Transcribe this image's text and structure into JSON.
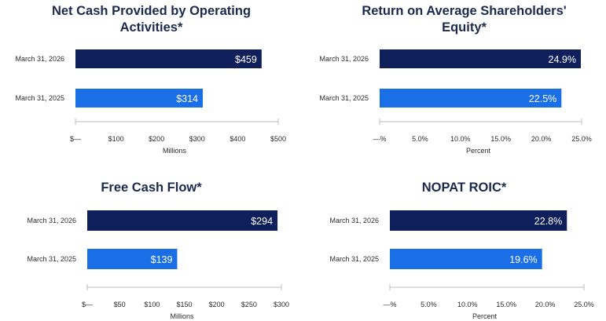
{
  "chart_data": [
    {
      "type": "bar",
      "orientation": "horizontal",
      "title": "Net Cash Provided by Operating Activities*",
      "xlabel": "Millions",
      "categories": [
        "March 31, 2026",
        "March 31, 2025"
      ],
      "values": [
        459,
        314
      ],
      "data_labels": [
        "$459",
        "$314"
      ],
      "bar_colors": [
        "#0f1f5c",
        "#1a6ee6"
      ],
      "xlim": [
        0,
        500
      ],
      "ticks": [
        0,
        100,
        200,
        300,
        400,
        500
      ],
      "tick_labels": [
        "$—",
        "$100",
        "$200",
        "$300",
        "$400",
        "$500"
      ],
      "grid": false
    },
    {
      "type": "bar",
      "orientation": "horizontal",
      "title": "Return on Average Shareholders' Equity*",
      "xlabel": "Percent",
      "categories": [
        "March 31, 2026",
        "March 31, 2025"
      ],
      "values": [
        24.9,
        22.5
      ],
      "data_labels": [
        "24.9%",
        "22.5%"
      ],
      "bar_colors": [
        "#0f1f5c",
        "#1a6ee6"
      ],
      "xlim": [
        0,
        25
      ],
      "ticks": [
        0,
        5,
        10,
        15,
        20,
        25
      ],
      "tick_labels": [
        "—%",
        "5.0%",
        "10.0%",
        "15.0%",
        "20.0%",
        "25.0%"
      ],
      "grid": false
    },
    {
      "type": "bar",
      "orientation": "horizontal",
      "title": "Free Cash Flow*",
      "xlabel": "Millions",
      "categories": [
        "March 31, 2026",
        "March 31, 2025"
      ],
      "values": [
        294,
        139
      ],
      "data_labels": [
        "$294",
        "$139"
      ],
      "bar_colors": [
        "#0f1f5c",
        "#1a6ee6"
      ],
      "xlim": [
        0,
        300
      ],
      "ticks": [
        0,
        50,
        100,
        150,
        200,
        250,
        300
      ],
      "tick_labels": [
        "$—",
        "$50",
        "$100",
        "$150",
        "$200",
        "$250",
        "$300"
      ],
      "grid": false
    },
    {
      "type": "bar",
      "orientation": "horizontal",
      "title": "NOPAT ROIC*",
      "xlabel": "Percent",
      "categories": [
        "March 31, 2026",
        "March 31, 2025"
      ],
      "values": [
        22.8,
        19.6
      ],
      "data_labels": [
        "22.8%",
        "19.6%"
      ],
      "bar_colors": [
        "#0f1f5c",
        "#1a6ee6"
      ],
      "xlim": [
        0,
        25
      ],
      "ticks": [
        0,
        5,
        10,
        15,
        20,
        25
      ],
      "tick_labels": [
        "—%",
        "5.0%",
        "10.0%",
        "15.0%",
        "20.0%",
        "25.0%"
      ],
      "grid": false
    }
  ]
}
